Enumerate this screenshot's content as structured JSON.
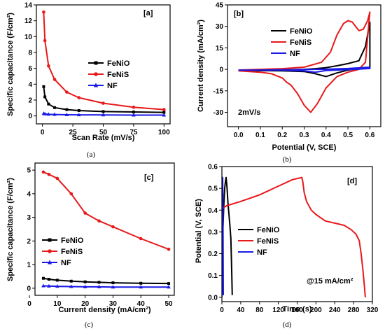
{
  "colors": {
    "FeNiO": "#000000",
    "FeNiS": "#e8191b",
    "NF": "#1a1ae6"
  },
  "chart_data": [
    {
      "id": "a",
      "type": "line",
      "tag": "[a]",
      "caption": "(a)",
      "xlabel": "Scan Rate (mV/s)",
      "ylabel": "Specific capacitance (F/cm²)",
      "xlim": [
        -5,
        105
      ],
      "ylim": [
        -1,
        14
      ],
      "xticks": [
        0,
        25,
        50,
        75,
        100
      ],
      "yticks": [
        0,
        2,
        4,
        6,
        8,
        10,
        12,
        14
      ],
      "markers": true,
      "legend": "center-right",
      "series": [
        {
          "name": "FeNiO",
          "color": "#000000",
          "marker": "square",
          "x": [
            1,
            2,
            5,
            10,
            20,
            30,
            50,
            75,
            100
          ],
          "y": [
            3.7,
            2.4,
            1.5,
            1.05,
            0.8,
            0.68,
            0.55,
            0.5,
            0.45
          ]
        },
        {
          "name": "FeNiS",
          "color": "#e8191b",
          "marker": "circle",
          "x": [
            1,
            2,
            5,
            10,
            20,
            30,
            50,
            75,
            100
          ],
          "y": [
            13.1,
            9.5,
            6.3,
            4.6,
            3.0,
            2.3,
            1.6,
            1.1,
            0.8
          ]
        },
        {
          "name": "NF",
          "color": "#1a1ae6",
          "marker": "triangle",
          "x": [
            1,
            2,
            5,
            10,
            20,
            30,
            50,
            75,
            100
          ],
          "y": [
            0.3,
            0.25,
            0.2,
            0.18,
            0.15,
            0.14,
            0.12,
            0.1,
            0.1
          ]
        }
      ]
    },
    {
      "id": "b",
      "type": "line",
      "tag": "[b]",
      "caption": "(b)",
      "xlabel": "Potential (V, SCE)",
      "ylabel": "Current density (mA/cm²)",
      "xlim": [
        -0.05,
        0.65
      ],
      "ylim": [
        -40,
        45
      ],
      "xticks": [
        0.0,
        0.1,
        0.2,
        0.3,
        0.4,
        0.5,
        0.6
      ],
      "yticks": [
        -30,
        -15,
        0,
        15,
        30,
        45
      ],
      "markers": false,
      "legend": "top-right",
      "annotation": "2mV/s",
      "series": [
        {
          "name": "FeNiO",
          "color": "#000000",
          "x": [
            0.0,
            0.1,
            0.2,
            0.3,
            0.35,
            0.4,
            0.45,
            0.5,
            0.55,
            0.58,
            0.6,
            0.6,
            0.55,
            0.5,
            0.45,
            0.4,
            0.35,
            0.3,
            0.2,
            0.1,
            0.0
          ],
          "y": [
            -0.8,
            -0.5,
            -0.3,
            0.0,
            0.5,
            1.2,
            2.5,
            4.0,
            6.0,
            16.0,
            33.0,
            1.0,
            0.5,
            -0.5,
            -2.5,
            -5.0,
            -3.0,
            -1.5,
            -1.0,
            -0.9,
            -0.8
          ]
        },
        {
          "name": "FeNiS",
          "color": "#e8191b",
          "x": [
            0.0,
            0.1,
            0.2,
            0.3,
            0.38,
            0.42,
            0.45,
            0.48,
            0.5,
            0.52,
            0.55,
            0.57,
            0.59,
            0.6,
            0.58,
            0.55,
            0.5,
            0.45,
            0.4,
            0.36,
            0.33,
            0.3,
            0.27,
            0.24,
            0.22,
            0.2,
            0.15,
            0.1,
            0.05,
            0.0
          ],
          "y": [
            -0.5,
            0.0,
            0.5,
            1.5,
            5.0,
            12.0,
            24.0,
            32.0,
            34.0,
            33.0,
            27.0,
            28.0,
            34.0,
            40.0,
            5.0,
            0.0,
            -2.0,
            -5.0,
            -13.0,
            -24.0,
            -30.0,
            -25.0,
            -17.0,
            -11.0,
            -9.0,
            -6.0,
            -3.0,
            -2.0,
            -1.5,
            -1.0
          ]
        },
        {
          "name": "NF",
          "color": "#1a1ae6",
          "x": [
            0.0,
            0.1,
            0.2,
            0.3,
            0.4,
            0.5,
            0.6,
            0.6,
            0.5,
            0.4,
            0.35,
            0.3,
            0.2,
            0.1,
            0.0
          ],
          "y": [
            -0.6,
            -0.5,
            -0.3,
            -0.1,
            0.1,
            0.6,
            1.5,
            0.6,
            -0.2,
            -0.8,
            -2.0,
            -1.0,
            -0.6,
            -0.6,
            -0.6
          ]
        }
      ]
    },
    {
      "id": "c",
      "type": "line",
      "tag": "[c]",
      "caption": "(c)",
      "xlabel": "Current density (mA/cm²)",
      "ylabel": "Specific capacitance (F/cm²)",
      "xlim": [
        2,
        52
      ],
      "ylim": [
        -0.3,
        5.3
      ],
      "xticks": [
        0,
        10,
        20,
        30,
        40,
        50
      ],
      "yticks": [
        0,
        1,
        2,
        3,
        4,
        5
      ],
      "markers": true,
      "legend": "bottom-left",
      "series": [
        {
          "name": "FeNiO",
          "color": "#000000",
          "marker": "square",
          "x": [
            5,
            7,
            10,
            15,
            20,
            25,
            30,
            40,
            50
          ],
          "y": [
            0.42,
            0.38,
            0.34,
            0.3,
            0.27,
            0.25,
            0.23,
            0.21,
            0.2
          ]
        },
        {
          "name": "FeNiS",
          "color": "#e8191b",
          "marker": "circle",
          "x": [
            5,
            7,
            10,
            15,
            20,
            25,
            30,
            40,
            50
          ],
          "y": [
            4.92,
            4.82,
            4.65,
            4.0,
            3.18,
            2.85,
            2.6,
            2.1,
            1.65
          ]
        },
        {
          "name": "NF",
          "color": "#1a1ae6",
          "marker": "triangle",
          "x": [
            5,
            7,
            10,
            15,
            20,
            25,
            30,
            40,
            50
          ],
          "y": [
            0.1,
            0.09,
            0.08,
            0.07,
            0.06,
            0.06,
            0.05,
            0.05,
            0.05
          ]
        }
      ]
    },
    {
      "id": "d",
      "type": "line",
      "tag": "[d]",
      "caption": "(d)",
      "xlabel": "Time (s)",
      "ylabel": "Potential (V, SCE)",
      "xlim": [
        0,
        320
      ],
      "ylim": [
        -0.02,
        0.6
      ],
      "xticks": [
        0,
        40,
        80,
        120,
        160,
        200,
        240,
        280,
        320
      ],
      "yticks": [
        0.0,
        0.1,
        0.2,
        0.3,
        0.4,
        0.5,
        0.6
      ],
      "markers": false,
      "legend": "center-left",
      "annotation": "@15 mA/cm²",
      "series": [
        {
          "name": "FeNiO",
          "color": "#000000",
          "x": [
            0,
            2,
            4,
            6,
            7.5,
            9,
            11,
            13,
            15,
            17,
            19,
            20.5,
            22
          ],
          "y": [
            0.0,
            0.3,
            0.42,
            0.5,
            0.53,
            0.55,
            0.5,
            0.43,
            0.38,
            0.33,
            0.27,
            0.15,
            0.01
          ]
        },
        {
          "name": "FeNiS",
          "color": "#e8191b",
          "x": [
            0,
            1,
            3,
            10,
            40,
            80,
            120,
            150,
            170,
            172,
            175,
            180,
            190,
            200,
            220,
            240,
            260,
            275,
            285,
            292,
            296,
            300,
            303,
            305
          ],
          "y": [
            0.0,
            0.4,
            0.41,
            0.42,
            0.44,
            0.47,
            0.51,
            0.54,
            0.55,
            0.53,
            0.48,
            0.44,
            0.4,
            0.38,
            0.35,
            0.34,
            0.33,
            0.31,
            0.29,
            0.26,
            0.2,
            0.12,
            0.05,
            0.0
          ]
        },
        {
          "name": "NF",
          "color": "#1a1ae6",
          "x": [
            0,
            0.5,
            1,
            1.6,
            2.3,
            3
          ],
          "y": [
            0.0,
            0.38,
            0.5,
            0.55,
            0.4,
            0.01
          ]
        }
      ]
    }
  ]
}
